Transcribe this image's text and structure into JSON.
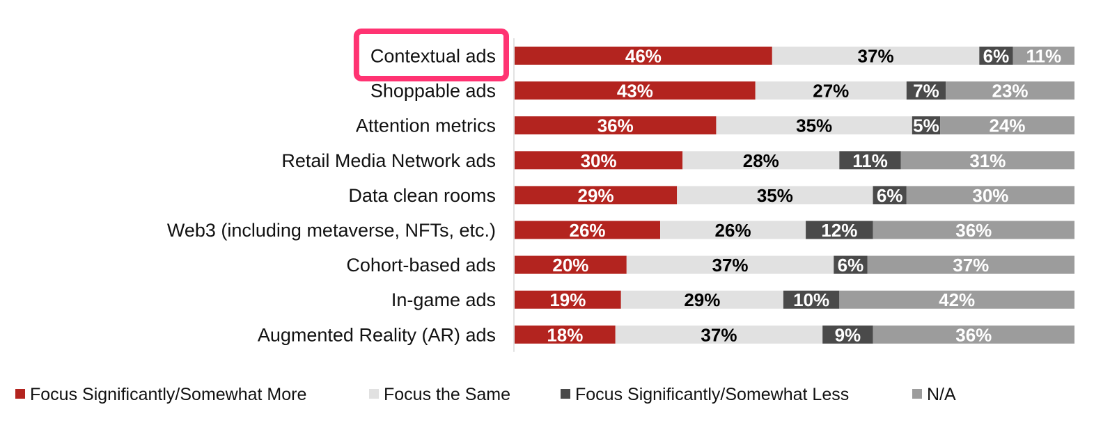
{
  "chart_data": {
    "type": "bar",
    "orientation": "horizontal",
    "stacked": true,
    "percent_stacked": true,
    "categories": [
      "Contextual ads",
      "Shoppable ads",
      "Attention metrics",
      "Retail Media Network ads",
      "Data clean rooms",
      "Web3 (including metaverse, NFTs, etc.)",
      "Cohort-based ads",
      "In-game ads",
      "Augmented Reality (AR) ads"
    ],
    "series": [
      {
        "name": "Focus Significantly/Somewhat More",
        "color": "#b3241f",
        "label_color": "#ffffff",
        "values": [
          46,
          43,
          36,
          30,
          29,
          26,
          20,
          19,
          18
        ]
      },
      {
        "name": "Focus the Same",
        "color": "#e1e1e1",
        "label_color": "#000000",
        "values": [
          37,
          27,
          35,
          28,
          35,
          26,
          37,
          29,
          37
        ]
      },
      {
        "name": "Focus Significantly/Somewhat Less",
        "color": "#4a4a4a",
        "label_color": "#ffffff",
        "values": [
          6,
          7,
          5,
          11,
          6,
          12,
          6,
          10,
          9
        ]
      },
      {
        "name": "N/A",
        "color": "#9c9c9c",
        "label_color": "#ffffff",
        "values": [
          11,
          23,
          24,
          31,
          30,
          36,
          37,
          42,
          36
        ]
      }
    ],
    "value_suffix": "%",
    "highlighted_category": "Contextual ads",
    "highlight_color": "#ff3372",
    "legend_position": "bottom",
    "grid": false,
    "xlim": [
      0,
      100
    ]
  }
}
